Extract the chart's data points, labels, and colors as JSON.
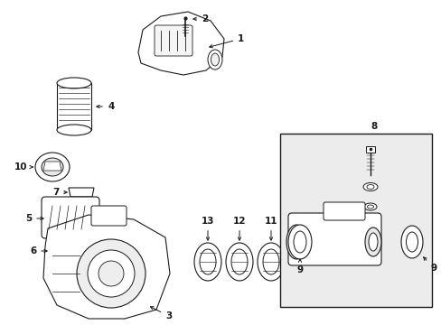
{
  "bg_color": "#ffffff",
  "line_color": "#1a1a1a",
  "box_fill": "#e8e8e8",
  "fig_width": 4.89,
  "fig_height": 3.6,
  "dpi": 100
}
